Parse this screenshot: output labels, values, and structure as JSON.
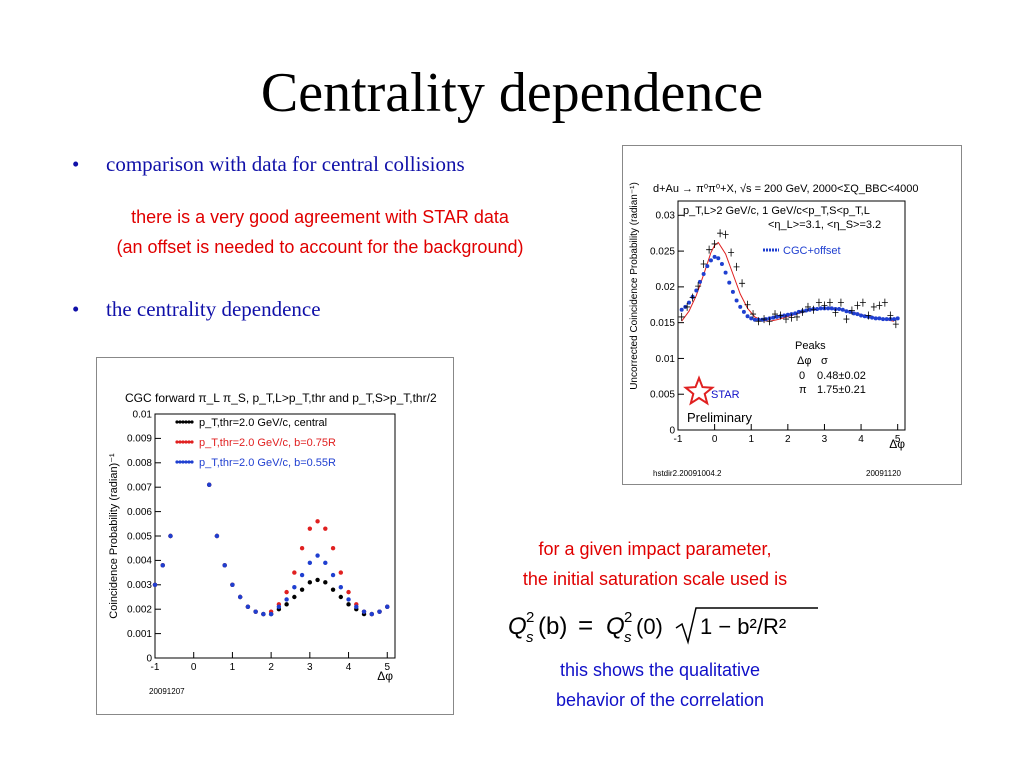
{
  "title": "Centrality dependence",
  "bullet1": "comparison with data for central collisions",
  "agreement_line1": "there is a very good agreement with STAR data",
  "agreement_line2": "(an offset is needed to account for the background)",
  "bullet2": "the centrality dependence",
  "impact_line1": "for a given impact parameter,",
  "impact_line2": "the initial saturation scale used is",
  "qual_line1": "this shows the qualitative",
  "qual_line2": "behavior of the correlation",
  "formula": {
    "lhs_arg": "(b)",
    "equals": "=",
    "rhs_arg": "(0)",
    "radicand": "1 − b²/R²"
  },
  "colors": {
    "title": "#000000",
    "bullet": "#1010a8",
    "red_text": "#e00000",
    "blue_text": "#1010c8",
    "star_series": "#000000",
    "cgc_series": "#1f3fd0",
    "fit": "#e02020"
  },
  "chart_data": [
    {
      "type": "scatter",
      "title": "d+Au → π⁰π⁰+X, √s = 200 GeV, 2000<ΣQ_BBC<4000",
      "subtitle_lines": [
        "p_T,L>2 GeV/c, 1 GeV/c<p_T,S<p_T,L",
        "<η_L>=3.1, <η_S>=3.2"
      ],
      "xlabel": "Δφ",
      "ylabel": "Uncorrected Coincidence Probability (radian⁻¹)",
      "xlim": [
        -1,
        5.2
      ],
      "ylim": [
        0,
        0.032
      ],
      "xticks": [
        "-1",
        "0",
        "1",
        "2",
        "3",
        "4",
        "5"
      ],
      "yticks": [
        "0",
        "0.005",
        "0.01",
        "0.015",
        "0.02",
        "0.025",
        "0.03"
      ],
      "legend": "CGC+offset",
      "peaks_header": "Peaks",
      "peaks_cols": [
        "Δφ",
        "σ"
      ],
      "peaks_rows": [
        [
          "0",
          "0.48±0.02"
        ],
        [
          "π",
          "1.75±0.21"
        ]
      ],
      "star_label": "STAR",
      "preliminary": "Preliminary",
      "footer_left": "hstdir2.20091004.2",
      "footer_right": "20091120",
      "series": [
        {
          "name": "STAR",
          "x": [
            -0.9,
            -0.75,
            -0.6,
            -0.45,
            -0.3,
            -0.15,
            0.0,
            0.15,
            0.3,
            0.45,
            0.6,
            0.75,
            0.9,
            1.05,
            1.2,
            1.35,
            1.5,
            1.65,
            1.8,
            1.95,
            2.1,
            2.25,
            2.4,
            2.55,
            2.7,
            2.85,
            3.0,
            3.15,
            3.3,
            3.45,
            3.6,
            3.75,
            3.9,
            4.05,
            4.2,
            4.35,
            4.5,
            4.65,
            4.8,
            4.95
          ],
          "y": [
            0.0158,
            0.0172,
            0.0185,
            0.0201,
            0.0232,
            0.0252,
            0.026,
            0.0275,
            0.0273,
            0.0248,
            0.0228,
            0.0205,
            0.0175,
            0.0162,
            0.0152,
            0.0155,
            0.0152,
            0.0162,
            0.016,
            0.0155,
            0.0157,
            0.0158,
            0.0165,
            0.0172,
            0.0168,
            0.0178,
            0.0174,
            0.0178,
            0.0164,
            0.0178,
            0.0155,
            0.0167,
            0.0174,
            0.0178,
            0.016,
            0.0172,
            0.0174,
            0.0178,
            0.016,
            0.0148
          ]
        },
        {
          "name": "CGC+offset",
          "x": [
            -0.9,
            -0.8,
            -0.7,
            -0.6,
            -0.5,
            -0.4,
            -0.3,
            -0.2,
            -0.1,
            0.0,
            0.1,
            0.2,
            0.3,
            0.4,
            0.5,
            0.6,
            0.7,
            0.8,
            0.9,
            1.0,
            1.1,
            1.2,
            1.3,
            1.4,
            1.5,
            1.6,
            1.7,
            1.8,
            1.9,
            2.0,
            2.1,
            2.2,
            2.3,
            2.4,
            2.5,
            2.6,
            2.7,
            2.8,
            2.9,
            3.0,
            3.1,
            3.2,
            3.3,
            3.4,
            3.5,
            3.6,
            3.7,
            3.8,
            3.9,
            4.0,
            4.1,
            4.2,
            4.3,
            4.4,
            4.5,
            4.6,
            4.7,
            4.8,
            4.9,
            5.0
          ],
          "y": [
            0.0168,
            0.0172,
            0.0178,
            0.0186,
            0.0195,
            0.0207,
            0.0218,
            0.0229,
            0.0237,
            0.0242,
            0.024,
            0.0232,
            0.022,
            0.0206,
            0.0193,
            0.0181,
            0.0172,
            0.0165,
            0.0159,
            0.0156,
            0.0154,
            0.0154,
            0.0154,
            0.0155,
            0.0156,
            0.0157,
            0.0158,
            0.0159,
            0.016,
            0.0161,
            0.0162,
            0.0163,
            0.0165,
            0.0166,
            0.0167,
            0.0168,
            0.0169,
            0.0169,
            0.017,
            0.017,
            0.017,
            0.017,
            0.0169,
            0.0169,
            0.0168,
            0.0166,
            0.0165,
            0.0163,
            0.0162,
            0.016,
            0.0159,
            0.0158,
            0.0157,
            0.0156,
            0.0156,
            0.0155,
            0.0155,
            0.0155,
            0.0155,
            0.0156
          ]
        },
        {
          "name": "fit",
          "x": [
            -0.9,
            -0.7,
            -0.5,
            -0.3,
            -0.1,
            0.0,
            0.1,
            0.3,
            0.5,
            0.7,
            0.9,
            1.1,
            1.3,
            1.5,
            1.7,
            1.9,
            2.1,
            2.3,
            2.5,
            2.7,
            2.9,
            3.1,
            3.3,
            3.5,
            3.7,
            3.9,
            4.1,
            4.3,
            4.5,
            4.7,
            4.9
          ],
          "y": [
            0.0152,
            0.0166,
            0.0188,
            0.0217,
            0.0248,
            0.0258,
            0.0262,
            0.0246,
            0.0218,
            0.019,
            0.017,
            0.0158,
            0.0153,
            0.0152,
            0.0154,
            0.0157,
            0.016,
            0.0163,
            0.0166,
            0.0168,
            0.017,
            0.017,
            0.017,
            0.0168,
            0.0166,
            0.0163,
            0.016,
            0.0158,
            0.0156,
            0.0154,
            0.0152
          ]
        }
      ]
    },
    {
      "type": "scatter",
      "title": "CGC forward π_L π_S, p_T,L>p_T,thr and p_T,S>p_T,thr/2",
      "xlabel": "Δφ",
      "ylabel": "Coincidence Probability (radian)⁻¹",
      "xlim": [
        -1,
        5.2
      ],
      "ylim": [
        0,
        0.01
      ],
      "xticks": [
        "-1",
        "0",
        "1",
        "2",
        "3",
        "4",
        "5"
      ],
      "yticks": [
        "0",
        "0.001",
        "0.002",
        "0.003",
        "0.004",
        "0.005",
        "0.006",
        "0.007",
        "0.008",
        "0.009",
        "0.01"
      ],
      "footer_left": "20091207",
      "x": [
        -1.0,
        -0.8,
        -0.6,
        0.4,
        0.6,
        0.8,
        1.0,
        1.2,
        1.4,
        1.6,
        1.8,
        2.0,
        2.2,
        2.4,
        2.6,
        2.8,
        3.0,
        3.2,
        3.4,
        3.6,
        3.8,
        4.0,
        4.2,
        4.4,
        4.6,
        4.8,
        5.0
      ],
      "series": [
        {
          "name": "p_T,thr=2.0 GeV/c, central",
          "color": "#000000",
          "values": [
            0.003,
            0.0038,
            0.005,
            0.0071,
            0.005,
            0.0038,
            0.003,
            0.0025,
            0.0021,
            0.0019,
            0.0018,
            0.0018,
            0.002,
            0.0022,
            0.0025,
            0.0028,
            0.0031,
            0.0032,
            0.0031,
            0.0028,
            0.0025,
            0.0022,
            0.002,
            0.0018,
            0.0018,
            0.0019,
            0.0021
          ]
        },
        {
          "name": "p_T,thr=2.0 GeV/c, b=0.75R",
          "color": "#e02020",
          "values": [
            0.003,
            0.0038,
            0.005,
            0.0071,
            0.005,
            0.0038,
            0.003,
            0.0025,
            0.0021,
            0.0019,
            0.0018,
            0.0019,
            0.0022,
            0.0027,
            0.0035,
            0.0045,
            0.0053,
            0.0056,
            0.0053,
            0.0045,
            0.0035,
            0.0027,
            0.0022,
            0.0019,
            0.0018,
            0.0019,
            0.0021
          ]
        },
        {
          "name": "p_T,thr=2.0 GeV/c, b=0.55R",
          "color": "#1f3fd0",
          "values": [
            0.003,
            0.0038,
            0.005,
            0.0071,
            0.005,
            0.0038,
            0.003,
            0.0025,
            0.0021,
            0.0019,
            0.0018,
            0.0018,
            0.0021,
            0.0024,
            0.0029,
            0.0034,
            0.0039,
            0.0042,
            0.0039,
            0.0034,
            0.0029,
            0.0024,
            0.0021,
            0.0019,
            0.0018,
            0.0019,
            0.0021
          ]
        }
      ]
    }
  ]
}
